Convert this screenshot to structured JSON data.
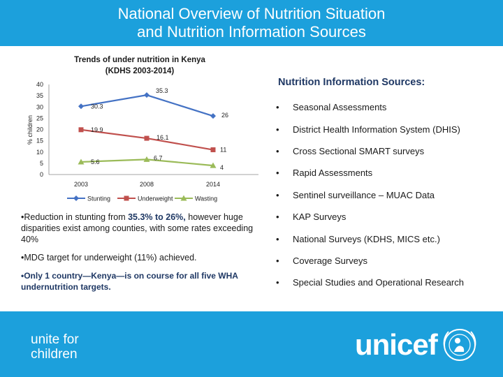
{
  "header": {
    "title_line1": "National Overview of Nutrition Situation",
    "title_line2": "and Nutrition Information Sources"
  },
  "chart_data": {
    "type": "line",
    "title_line1": "Trends of under nutrition in Kenya",
    "title_line2": "(KDHS 2003-2014)",
    "ylabel": "% children",
    "x": [
      "2003",
      "2008",
      "2014"
    ],
    "ylim": [
      0,
      40
    ],
    "yticks": [
      0,
      5,
      10,
      15,
      20,
      25,
      30,
      35,
      40
    ],
    "grid": false,
    "legend_position": "bottom",
    "series": [
      {
        "name": "Stunting",
        "values": [
          30.3,
          35.3,
          26
        ],
        "labels": [
          "30.3",
          "35.3",
          "26"
        ],
        "color": "#4472c4",
        "marker": "diamond"
      },
      {
        "name": "Underweight",
        "values": [
          19.9,
          16.1,
          11
        ],
        "labels": [
          "19.9",
          "16.1",
          "11"
        ],
        "color": "#c0504d",
        "marker": "square"
      },
      {
        "name": "Wasting",
        "values": [
          5.6,
          6.7,
          4
        ],
        "labels": [
          "5.6",
          "6.7",
          "4"
        ],
        "color": "#9bbb59",
        "marker": "triangle"
      }
    ]
  },
  "sources": {
    "title": "Nutrition Information Sources:",
    "items": [
      "Seasonal Assessments",
      "District Health Information System (DHIS)",
      "Cross Sectional SMART surveys",
      "Rapid Assessments",
      "Sentinel surveillance – MUAC Data",
      "KAP Surveys",
      "National Surveys (KDHS, MICS etc.)",
      "Coverage Surveys",
      "Special Studies and Operational Research"
    ]
  },
  "notes": {
    "n1_pre": "Reduction in stunting from ",
    "n1_bold": "35.3% to 26%,",
    "n1_post": " however huge disparities exist among counties, with some rates exceeding 40%",
    "n2": "MDG target for underweight (11%) achieved.",
    "n3": "Only 1 country—Kenya—is on course for all five WHA undernutrition targets."
  },
  "footer": {
    "tagline_line1": "unite for",
    "tagline_line2": "children",
    "logo": "unicef"
  },
  "colors": {
    "brand_blue": "#1ca0dc",
    "dark_navy": "#1f3864"
  }
}
